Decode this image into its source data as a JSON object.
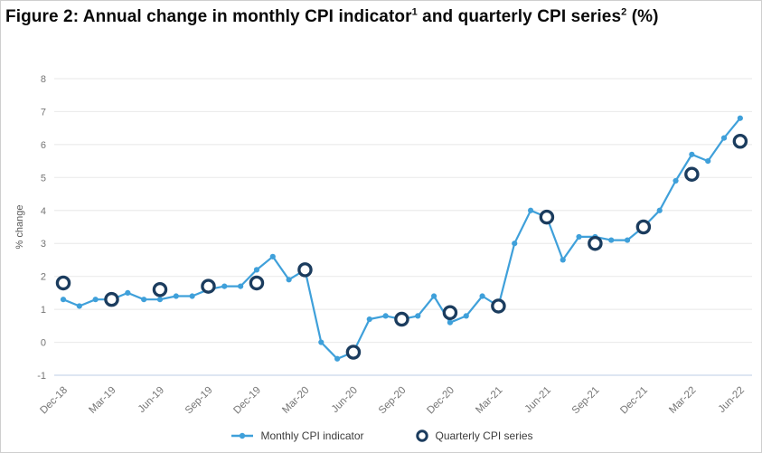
{
  "header": {
    "title_parts": [
      {
        "t": "Figure 2: Annual change in monthly CPI indicator"
      },
      {
        "sup": "1"
      },
      {
        "t": " and quarterly CPI series"
      },
      {
        "sup": "2"
      },
      {
        "t": " (%)"
      }
    ]
  },
  "chart_data": {
    "type": "line",
    "title": "Figure 2: Annual change in monthly CPI indicator and quarterly CPI series (%)",
    "xlabel": "",
    "ylabel": "% change",
    "ylim": [
      -1,
      8
    ],
    "yticks": [
      8,
      7,
      6,
      5,
      4,
      3,
      2,
      1,
      0,
      -1
    ],
    "grid": true,
    "legend_position": "bottom",
    "x_tick_labels": [
      "Dec-18",
      "Mar-19",
      "Jun-19",
      "Sep-19",
      "Dec-19",
      "Mar-20",
      "Jun-20",
      "Sep-20",
      "Dec-20",
      "Mar-21",
      "Jun-21",
      "Sep-21",
      "Dec-21",
      "Mar-22",
      "Jun-22"
    ],
    "series": [
      {
        "name": "Monthly CPI indicator",
        "type": "line-with-markers",
        "color": "#3fa0da",
        "x_labels": [
          "Dec-18",
          "Jan-19",
          "Feb-19",
          "Mar-19",
          "Apr-19",
          "May-19",
          "Jun-19",
          "Jul-19",
          "Aug-19",
          "Sep-19",
          "Oct-19",
          "Nov-19",
          "Dec-19",
          "Jan-20",
          "Feb-20",
          "Mar-20",
          "Apr-20",
          "May-20",
          "Jun-20",
          "Jul-20",
          "Aug-20",
          "Sep-20",
          "Oct-20",
          "Nov-20",
          "Dec-20",
          "Jan-21",
          "Feb-21",
          "Mar-21",
          "Apr-21",
          "May-21",
          "Jun-21",
          "Jul-21",
          "Aug-21",
          "Sep-21",
          "Oct-21",
          "Nov-21",
          "Dec-21",
          "Jan-22",
          "Feb-22",
          "Mar-22",
          "Apr-22",
          "May-22",
          "Jun-22"
        ],
        "values": [
          1.3,
          1.1,
          1.3,
          1.3,
          1.5,
          1.3,
          1.3,
          1.4,
          1.4,
          1.6,
          1.7,
          1.7,
          2.2,
          2.6,
          1.9,
          2.2,
          0.0,
          -0.5,
          -0.3,
          0.7,
          0.8,
          0.7,
          0.8,
          1.4,
          0.6,
          0.8,
          1.4,
          1.1,
          3.0,
          4.0,
          3.8,
          2.5,
          3.2,
          3.2,
          3.1,
          3.1,
          3.5,
          4.0,
          4.9,
          5.7,
          5.5,
          6.2,
          6.8
        ]
      },
      {
        "name": "Quarterly CPI series",
        "type": "scatter-open-circle",
        "color": "#1b3c5e",
        "x_labels": [
          "Dec-18",
          "Mar-19",
          "Jun-19",
          "Sep-19",
          "Dec-19",
          "Mar-20",
          "Jun-20",
          "Sep-20",
          "Dec-20",
          "Mar-21",
          "Jun-21",
          "Sep-21",
          "Dec-21",
          "Mar-22",
          "Jun-22"
        ],
        "values": [
          1.8,
          1.3,
          1.6,
          1.7,
          1.8,
          2.2,
          -0.3,
          0.7,
          0.9,
          1.1,
          3.8,
          3.0,
          3.5,
          5.1,
          6.1
        ]
      }
    ]
  },
  "colors": {
    "monthly_line": "#3fa0da",
    "quarterly_circle": "#1b3c5e",
    "gridline": "#ececec",
    "baseline": "#c9d7ea",
    "tick_text": "#757575",
    "axis_label": "#5a5a5a",
    "legend_text": "#3c3c3c",
    "title_text": "#0a0a0a"
  },
  "legend": {
    "monthly_label": "Monthly CPI indicator",
    "quarterly_label": "Quarterly CPI series"
  }
}
